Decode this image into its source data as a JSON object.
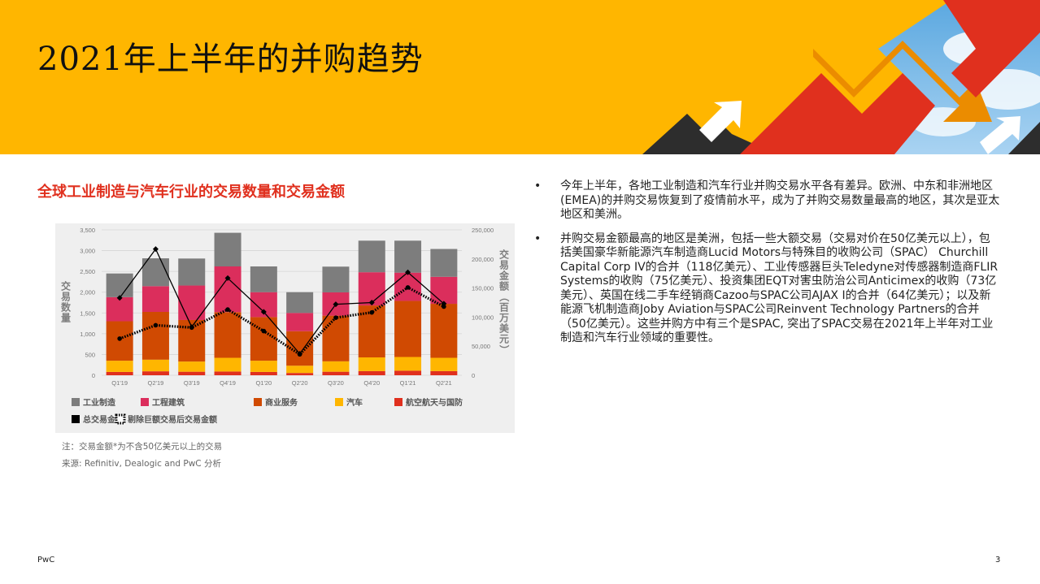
{
  "page": {
    "title": "2021年上半年的并购趋势",
    "footer_brand": "PwC",
    "page_number": "3"
  },
  "chart_section": {
    "heading": "全球工业制造与汽车行业的交易数量和交易金额",
    "note": "注：交易金额*为不含50亿美元以上的交易",
    "source": "来源: Refinitiv, Dealogic and PwC 分析"
  },
  "bullets": [
    "今年上半年，各地工业制造和汽车行业并购交易水平各有差异。欧洲、中东和非洲地区(EMEA)的并购交易恢复到了疫情前水平，成为了并购交易数量最高的地区，其次是亚太地区和美洲。",
    "并购交易金额最高的地区是美洲，包括一些大额交易（交易对价在50亿美元以上），包括美国豪华新能源汽车制造商Lucid Motors与特殊目的收购公司（SPAC） Churchill Capital Corp IV的合并（118亿美元）、工业传感器巨头Teledyne对传感器制造商FLIR Systems的收购（75亿美元）、投资集团EQT对害虫防治公司Anticimex的收购（73亿美元）、英国在线二手车经销商Cazoo与SPAC公司AJAX I的合并（64亿美元）；以及新能源飞机制造商Joby Aviation与SPAC公司Reinvent Technology Partners的合并（50亿美元）。这些并购方中有三个是SPAC, 突出了SPAC交易在2021年上半年对工业制造和汽车行业领域的重要性。"
  ],
  "chart_data": {
    "type": "bar",
    "stacked": true,
    "categories": [
      "Q1'19",
      "Q2'19",
      "Q3'19",
      "Q4'19",
      "Q1'20",
      "Q2'20",
      "Q3'20",
      "Q4'20",
      "Q1'21",
      "Q2'21"
    ],
    "ylabel": "交易数量",
    "y2label": "交易金额（百万美元）",
    "ylim": [
      0,
      3500
    ],
    "yticks": [
      "0",
      "500",
      "1,000",
      "1,500",
      "2,000",
      "2,500",
      "3,000",
      "3,500"
    ],
    "y2lim": [
      0,
      250000
    ],
    "y2ticks": [
      "0",
      "50,000",
      "100,000",
      "150,000",
      "200,000",
      "250,000"
    ],
    "grid": true,
    "legend_position": "bottom",
    "series": [
      {
        "name": "航空航天与国防",
        "color": "#E0301E",
        "values": [
          80,
          95,
          85,
          90,
          80,
          55,
          85,
          100,
          110,
          100
        ]
      },
      {
        "name": "汽车",
        "color": "#FFB600",
        "values": [
          270,
          280,
          245,
          330,
          270,
          175,
          250,
          330,
          330,
          320
        ]
      },
      {
        "name": "商业服务",
        "color": "#D04A02",
        "values": [
          950,
          1150,
          1000,
          1100,
          1050,
          830,
          1100,
          1250,
          1350,
          1300
        ]
      },
      {
        "name": "工程建筑",
        "color": "#DB2E5C",
        "values": [
          580,
          620,
          830,
          1100,
          600,
          440,
          560,
          800,
          680,
          650
        ]
      },
      {
        "name": "工业制造",
        "color": "#7D7D7D",
        "values": [
          570,
          670,
          650,
          810,
          620,
          500,
          620,
          760,
          770,
          670
        ]
      }
    ],
    "lines": [
      {
        "name": "总交易金额",
        "color": "#000000",
        "style": "solid",
        "values": [
          133000,
          217000,
          83000,
          167000,
          109000,
          37000,
          122000,
          125000,
          177000,
          123000
        ]
      },
      {
        "name": "剔除巨额交易后交易金额",
        "color": "#000000",
        "style": "dotted",
        "values": [
          63000,
          86000,
          82000,
          113000,
          76000,
          36000,
          99000,
          108000,
          151000,
          118000
        ]
      }
    ]
  }
}
